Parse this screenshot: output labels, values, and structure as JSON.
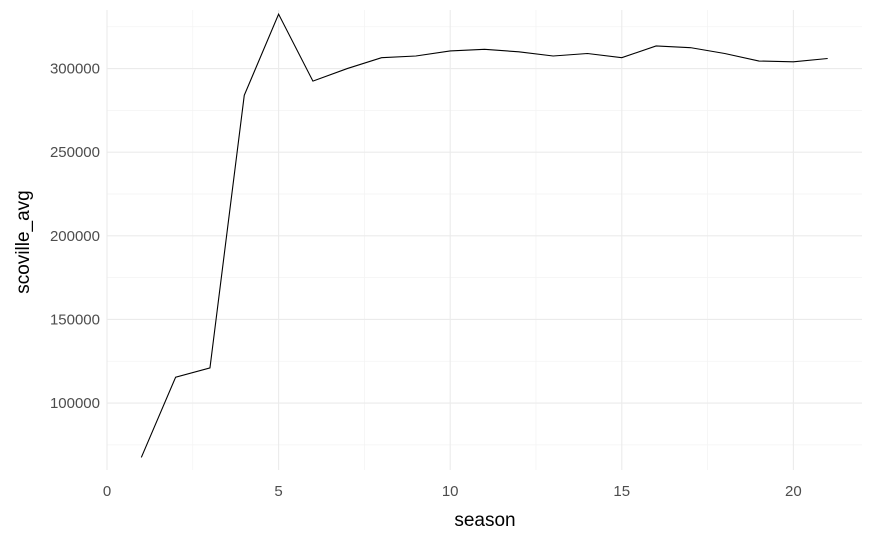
{
  "chart_data": {
    "type": "line",
    "title": "",
    "xlabel": "season",
    "ylabel": "scoville_avg",
    "xlim": [
      0,
      22
    ],
    "ylim": [
      60000,
      335000
    ],
    "x_major_ticks": [
      0,
      5,
      10,
      15,
      20
    ],
    "x_tick_labels": [
      "0",
      "5",
      "10",
      "15",
      "20"
    ],
    "y_major_ticks": [
      100000,
      150000,
      200000,
      250000,
      300000
    ],
    "y_tick_labels": [
      "100000",
      "150000",
      "200000",
      "250000",
      "300000"
    ],
    "grid": true,
    "legend": "none",
    "line_color": "#000000",
    "series": [
      {
        "x": [
          1,
          2,
          3,
          4,
          5,
          6,
          7,
          8,
          9,
          10,
          11,
          12,
          13,
          14,
          15,
          16,
          17,
          18,
          19,
          20,
          21
        ],
        "values": [
          67500,
          115500,
          121000,
          284000,
          332500,
          292500,
          300000,
          306500,
          307500,
          310500,
          311500,
          310000,
          307500,
          309000,
          306500,
          313500,
          312500,
          309000,
          304500,
          304000,
          306000
        ]
      }
    ]
  }
}
